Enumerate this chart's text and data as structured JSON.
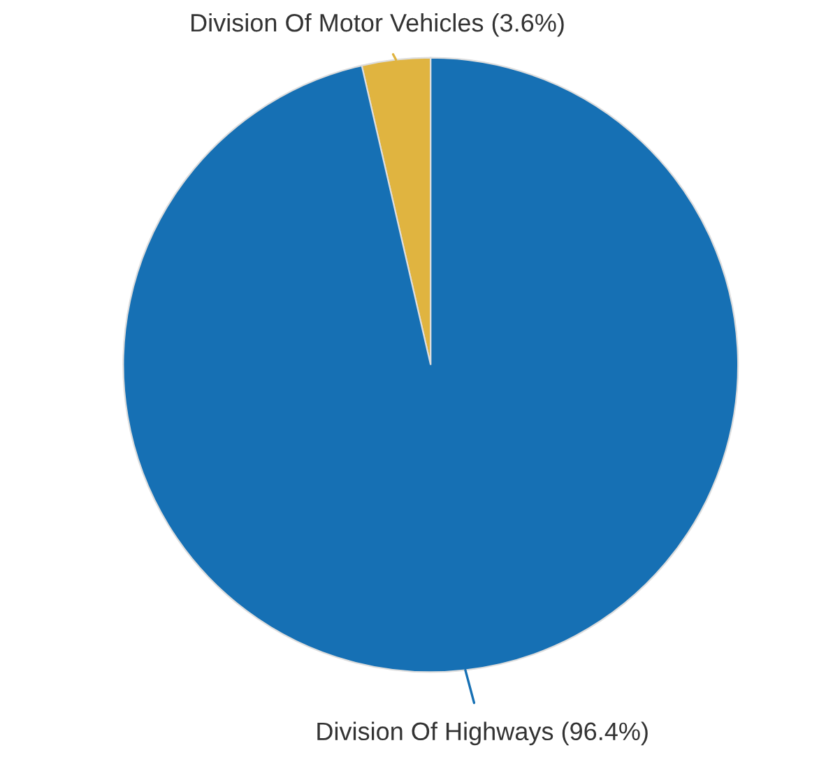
{
  "chart_data": {
    "type": "pie",
    "categories": [
      "Division Of Motor Vehicles",
      "Division Of Highways"
    ],
    "values": [
      3.6,
      96.4
    ],
    "value_labels": [
      "(3.6%)",
      "(96.4%)"
    ],
    "colors": [
      "#e0b440",
      "#1670b4"
    ],
    "legend": false
  }
}
